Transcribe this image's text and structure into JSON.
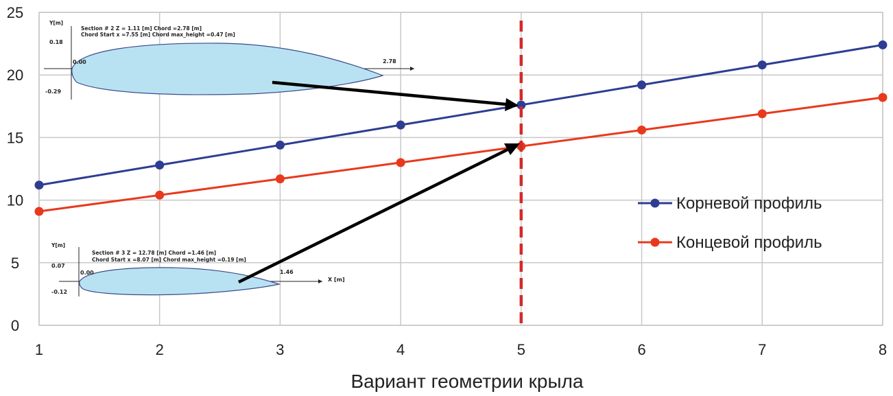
{
  "chart_data": {
    "type": "line",
    "title": "",
    "xlabel": "Вариант геометрии  крыла",
    "ylabel": "",
    "x": [
      1,
      2,
      3,
      4,
      5,
      6,
      7,
      8
    ],
    "xlim": [
      1,
      8
    ],
    "ylim": [
      0,
      25
    ],
    "x_ticks": [
      "1",
      "2",
      "3",
      "4",
      "5",
      "6",
      "7",
      "8"
    ],
    "y_ticks": [
      "0",
      "5",
      "10",
      "15",
      "20",
      "25"
    ],
    "grid": true,
    "legend_position": "right",
    "series": [
      {
        "name": "Корневой профиль",
        "color": "#2e3d92",
        "values": [
          11.2,
          12.8,
          14.4,
          16.0,
          17.6,
          19.2,
          20.8,
          22.4
        ]
      },
      {
        "name": "Концевой профиль",
        "color": "#e8391d",
        "values": [
          9.1,
          10.4,
          11.7,
          13.0,
          14.3,
          15.6,
          16.9,
          18.2
        ]
      }
    ],
    "marker_line": {
      "x": 5,
      "color": "#d42a2a",
      "style": "dashed"
    },
    "insets": [
      {
        "name": "root-section",
        "ylabel": "Y[m]",
        "header_line1": "Section # 2 Z = 1.11 [m] Chord =2.78 [m]",
        "header_line2": "Chord Start x =7.55 [m] Chord max_height =0.47 [m]",
        "y_top": "0.18",
        "y_bottom": "-0.29",
        "origin": "0.00",
        "chord_end": "2.78",
        "xlabel": ""
      },
      {
        "name": "tip-section",
        "ylabel": "Y[m]",
        "header_line1": "Section # 3 Z = 12.78 [m] Chord =1.46 [m]",
        "header_line2": "Chord Start x =8.07 [m] Chord max_height =0.19 [m]",
        "y_top": "0.07",
        "y_bottom": "-0.12",
        "origin": "0.00",
        "chord_end": "1.46",
        "xlabel": "X [m]"
      }
    ]
  }
}
